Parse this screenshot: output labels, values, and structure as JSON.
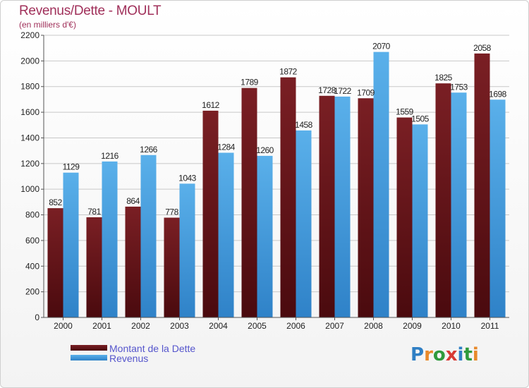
{
  "title": "Revenus/Dette - MOULT",
  "subtitle": "(en milliers d'€)",
  "brand": {
    "text": "Proxiti",
    "letter_colors": [
      "#2f7fc4",
      "#e8892a",
      "#2f9a3c",
      "#d83a34",
      "#2f7fc4",
      "#2f9a3c",
      "#e8892a"
    ]
  },
  "colors": {
    "dette": "#7a1f24",
    "dette_dark": "#4a0a0e",
    "revenus": "#5ab0ea",
    "revenus_dark": "#2f82c8",
    "axis_text": "#222222"
  },
  "chart_data": {
    "type": "bar",
    "title": "Revenus/Dette - MOULT",
    "subtitle": "(en milliers d'€)",
    "categories": [
      "2000",
      "2001",
      "2002",
      "2003",
      "2004",
      "2005",
      "2006",
      "2007",
      "2008",
      "2009",
      "2010",
      "2011"
    ],
    "series": [
      {
        "name": "Montant de la Dette",
        "values": [
          852,
          781,
          864,
          778,
          1612,
          1789,
          1872,
          1728,
          1709,
          1559,
          1825,
          2058
        ]
      },
      {
        "name": "Revenus",
        "values": [
          1129,
          1216,
          1266,
          1043,
          1284,
          1260,
          1458,
          1722,
          2070,
          1505,
          1753,
          1698
        ]
      }
    ],
    "ylim": [
      0,
      2200
    ],
    "yticks": [
      0,
      200,
      400,
      600,
      800,
      1000,
      1200,
      1400,
      1600,
      1800,
      2000,
      2200
    ],
    "grid": true,
    "legend_position": "bottom-left"
  }
}
